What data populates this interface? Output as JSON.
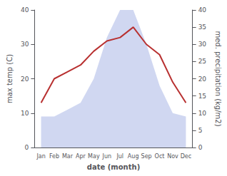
{
  "chart_data": {
    "type": "line",
    "categories": [
      "Jan",
      "Feb",
      "Mar",
      "Apr",
      "May",
      "Jun",
      "Jul",
      "Aug",
      "Sep",
      "Oct",
      "Nov",
      "Dec"
    ],
    "series": [
      {
        "type": "area",
        "color": "#b0bce8",
        "axis": "y2",
        "values": [
          9,
          9,
          11,
          13,
          20,
          32,
          40,
          40,
          30,
          18,
          10,
          9
        ]
      },
      {
        "type": "line",
        "color": "#b83030",
        "values": [
          13,
          20,
          22,
          24,
          28,
          31,
          32,
          35,
          30,
          27,
          19,
          13
        ]
      }
    ],
    "xlabel": "date (month)",
    "ylabel": "max temp (C)",
    "y2label": "med. precipitation (kg/m2)",
    "ylim": [
      0,
      40
    ],
    "yticks": [
      0,
      10,
      20,
      30,
      40
    ],
    "y2lim": [
      0,
      40
    ],
    "y2ticks": [
      0,
      5,
      10,
      15,
      20,
      25,
      30,
      35,
      40
    ],
    "grid": false
  }
}
